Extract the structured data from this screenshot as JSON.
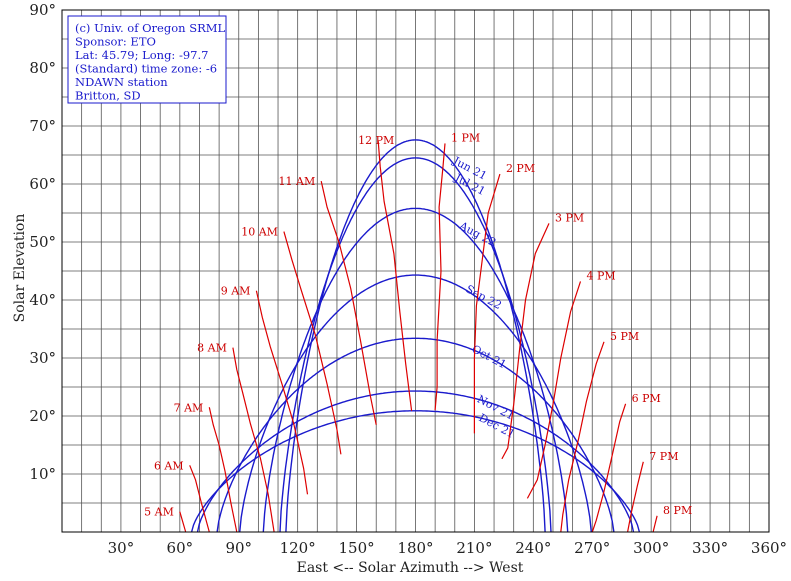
{
  "chart_data": {
    "type": "line",
    "title": "",
    "xlabel": "East <-- Solar Azimuth --> West",
    "ylabel": "Solar Elevation",
    "xlim": [
      0,
      360
    ],
    "ylim": [
      0,
      90
    ],
    "x_ticks": [
      {
        "value": 30,
        "label": "30°"
      },
      {
        "value": 60,
        "label": "60°"
      },
      {
        "value": 90,
        "label": "90°"
      },
      {
        "value": 120,
        "label": "120°"
      },
      {
        "value": 150,
        "label": "150°"
      },
      {
        "value": 180,
        "label": "180°"
      },
      {
        "value": 210,
        "label": "210°"
      },
      {
        "value": 240,
        "label": "240°"
      },
      {
        "value": 270,
        "label": "270°"
      },
      {
        "value": 300,
        "label": "300°"
      },
      {
        "value": 330,
        "label": "330°"
      },
      {
        "value": 360,
        "label": "360°"
      }
    ],
    "y_ticks": [
      {
        "value": 10,
        "label": "10°"
      },
      {
        "value": 20,
        "label": "20°"
      },
      {
        "value": 30,
        "label": "30°"
      },
      {
        "value": 40,
        "label": "40°"
      },
      {
        "value": 50,
        "label": "50°"
      },
      {
        "value": 60,
        "label": "60°"
      },
      {
        "value": 70,
        "label": "70°"
      },
      {
        "value": 80,
        "label": "80°"
      },
      {
        "value": 90,
        "label": "90°"
      }
    ],
    "grid": true,
    "info_box": {
      "placement": "top-left",
      "lines": [
        "(c) Univ. of Oregon SRML",
        "Sponsor: ETO",
        "Lat: 45.79; Long: -97.7",
        "(Standard) time zone: -6",
        "NDAWN station",
        "Britton, SD"
      ]
    },
    "month_curves": [
      {
        "name": "Jun 21",
        "peak": 67.6,
        "z": 66,
        "color": "#1a1acc"
      },
      {
        "name": "Jul 21",
        "peak": 64.5,
        "z": 69,
        "color": "#1a1acc"
      },
      {
        "name": "Aug 22",
        "peak": 55.8,
        "z": 77.5,
        "color": "#1a1acc"
      },
      {
        "name": "Sep 22",
        "peak": 44.3,
        "z": 89.5,
        "color": "#1a1acc"
      },
      {
        "name": "Oct 21",
        "peak": 33.4,
        "z": 101,
        "color": "#1a1acc"
      },
      {
        "name": "Nov 21",
        "peak": 24.3,
        "z": 111,
        "color": "#1a1acc"
      },
      {
        "name": "Dec 21",
        "peak": 20.9,
        "z": 114,
        "color": "#1a1acc"
      }
    ],
    "hour_lines": [
      {
        "label": "5 AM",
        "points": [
          [
            60,
            3.5
          ],
          [
            63,
            0
          ]
        ]
      },
      {
        "label": "6 AM",
        "points": [
          [
            65,
            11.5
          ],
          [
            68,
            9
          ],
          [
            71,
            5
          ],
          [
            75,
            0
          ]
        ]
      },
      {
        "label": "7 AM",
        "points": [
          [
            75,
            21.5
          ],
          [
            77,
            18.5
          ],
          [
            80,
            15
          ],
          [
            83,
            10.5
          ],
          [
            86,
            5
          ],
          [
            89,
            0
          ]
        ]
      },
      {
        "label": "8 AM",
        "points": [
          [
            87,
            31.8
          ],
          [
            89,
            28
          ],
          [
            92,
            24
          ],
          [
            96,
            18.6
          ],
          [
            101,
            12.7
          ],
          [
            105,
            6.5
          ],
          [
            108,
            0
          ]
        ]
      },
      {
        "label": "9 AM",
        "points": [
          [
            99,
            41.6
          ],
          [
            102,
            37
          ],
          [
            106,
            32
          ],
          [
            112,
            25.5
          ],
          [
            118,
            18.7
          ],
          [
            123,
            11
          ],
          [
            125,
            6.5
          ]
        ]
      },
      {
        "label": "10 AM",
        "points": [
          [
            113,
            51.8
          ],
          [
            117,
            47
          ],
          [
            122,
            41.5
          ],
          [
            129,
            34
          ],
          [
            135,
            25.5
          ],
          [
            140,
            17.7
          ],
          [
            142,
            13.4
          ]
        ]
      },
      {
        "label": "11 AM",
        "points": [
          [
            132,
            60.5
          ],
          [
            135,
            56
          ],
          [
            141,
            50
          ],
          [
            147,
            42
          ],
          [
            152,
            33
          ],
          [
            157,
            23.5
          ],
          [
            160,
            18.5
          ]
        ]
      },
      {
        "label": "12 PM",
        "points": [
          [
            161,
            67.4
          ],
          [
            162,
            63
          ],
          [
            164,
            57
          ],
          [
            169,
            48
          ],
          [
            172,
            38
          ],
          [
            175,
            29
          ],
          [
            178,
            20.9
          ]
        ]
      },
      {
        "label": "1 PM",
        "points": [
          [
            195,
            67
          ],
          [
            194,
            63
          ],
          [
            192,
            56
          ],
          [
            193,
            45
          ],
          [
            191,
            33
          ],
          [
            191,
            25
          ],
          [
            190,
            21
          ]
        ]
      },
      {
        "label": "2 PM",
        "points": [
          [
            223,
            61.7
          ],
          [
            217,
            55
          ],
          [
            214,
            47
          ],
          [
            211,
            39
          ],
          [
            210,
            30
          ],
          [
            210,
            22
          ],
          [
            210,
            17
          ]
        ]
      },
      {
        "label": "3 PM",
        "points": [
          [
            248,
            53.2
          ],
          [
            241,
            48
          ],
          [
            236,
            40
          ],
          [
            233,
            31.5
          ],
          [
            230,
            22
          ],
          [
            227,
            14.5
          ],
          [
            224,
            12.6
          ]
        ]
      },
      {
        "label": "4 PM",
        "points": [
          [
            264,
            43.2
          ],
          [
            259,
            38
          ],
          [
            254,
            30
          ],
          [
            250,
            22
          ],
          [
            246,
            15
          ],
          [
            242,
            9
          ],
          [
            237,
            5.8
          ]
        ]
      },
      {
        "label": "5 PM",
        "points": [
          [
            276,
            32.8
          ],
          [
            272,
            29
          ],
          [
            267,
            22.5
          ],
          [
            263,
            16
          ],
          [
            258,
            9
          ],
          [
            255,
            3
          ],
          [
            254,
            0
          ]
        ]
      },
      {
        "label": "6 PM",
        "points": [
          [
            287,
            22.1
          ],
          [
            284,
            19
          ],
          [
            280,
            13
          ],
          [
            276,
            7
          ],
          [
            272,
            2
          ],
          [
            270,
            0
          ]
        ]
      },
      {
        "label": "7 PM",
        "points": [
          [
            296,
            12.1
          ],
          [
            293,
            8
          ],
          [
            290,
            3.5
          ],
          [
            288,
            0
          ]
        ]
      },
      {
        "label": "8 PM",
        "points": [
          [
            303,
            2.8
          ],
          [
            301,
            0
          ]
        ]
      }
    ]
  }
}
